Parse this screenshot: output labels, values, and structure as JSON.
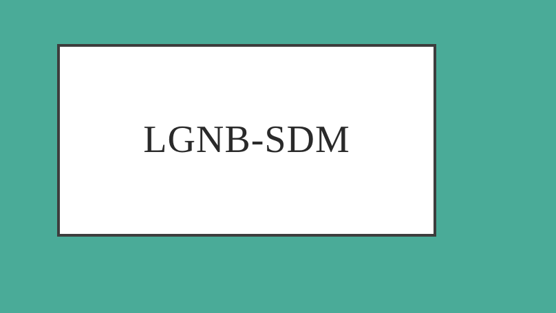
{
  "card": {
    "title": "LGNB-SDM"
  },
  "colors": {
    "background": "#4aab98",
    "card_background": "#ffffff",
    "card_border": "#3d3d3d",
    "title_text": "#2a2a2a"
  }
}
